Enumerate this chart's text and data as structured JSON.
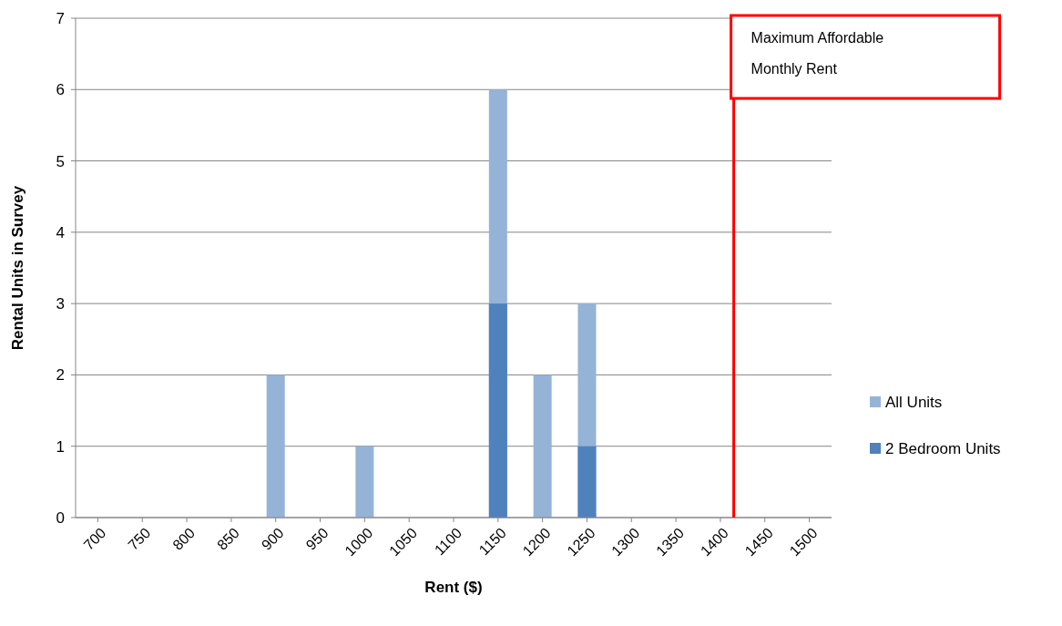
{
  "chart_data": {
    "type": "bar",
    "xlabel": "Rent ($)",
    "ylabel": "Rental Units in Survey",
    "xlim": [
      675,
      1525
    ],
    "xticks": [
      700,
      750,
      800,
      850,
      900,
      950,
      1000,
      1050,
      1100,
      1150,
      1200,
      1250,
      1300,
      1350,
      1400,
      1450,
      1500
    ],
    "ylim": [
      0,
      7
    ],
    "yticks": [
      0,
      1,
      2,
      3,
      4,
      5,
      6,
      7
    ],
    "grid": "y",
    "legend": "right",
    "series": [
      {
        "name": "All Units",
        "color": "#95b3d7",
        "x": [
          900,
          1000,
          1150,
          1200,
          1250
        ],
        "values": [
          2,
          1,
          6,
          2,
          3
        ]
      },
      {
        "name": "2 Bedroom Units",
        "color": "#4f81bd",
        "x": [
          1150,
          1250
        ],
        "values": [
          3,
          1
        ]
      }
    ],
    "ref_lines": [
      {
        "axis": "x",
        "value": 1415,
        "label": "Maximum Affordable Monthly Rent",
        "color": "#ff0000"
      }
    ]
  }
}
